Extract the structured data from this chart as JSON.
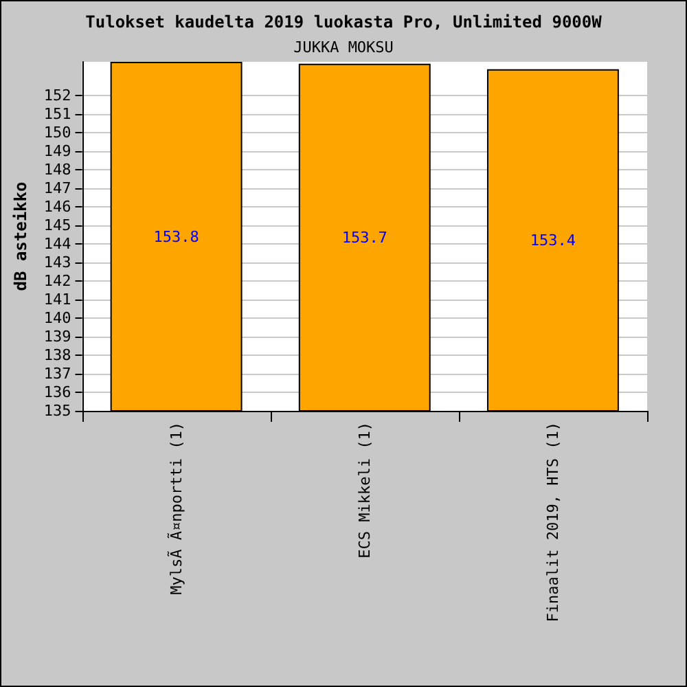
{
  "chart_data": {
    "type": "bar",
    "title": "Tulokset kaudelta 2019 luokasta Pro, Unlimited 9000W",
    "subtitle": "JUKKA MOKSU",
    "ylabel": "dB asteikko",
    "categories": [
      "MylsÃ Ã¤nportti (1)",
      "ECS Mikkeli (1)",
      "Finaalit 2019, HTS (1)"
    ],
    "values": [
      153.8,
      153.7,
      153.4
    ],
    "color": "#ffa500",
    "data_labels": true,
    "ylim": [
      135,
      153.8
    ],
    "yticks": [
      135,
      136,
      137,
      138,
      139,
      140,
      141,
      142,
      143,
      144,
      145,
      146,
      147,
      148,
      149,
      150,
      151,
      152
    ],
    "grid": "y"
  }
}
